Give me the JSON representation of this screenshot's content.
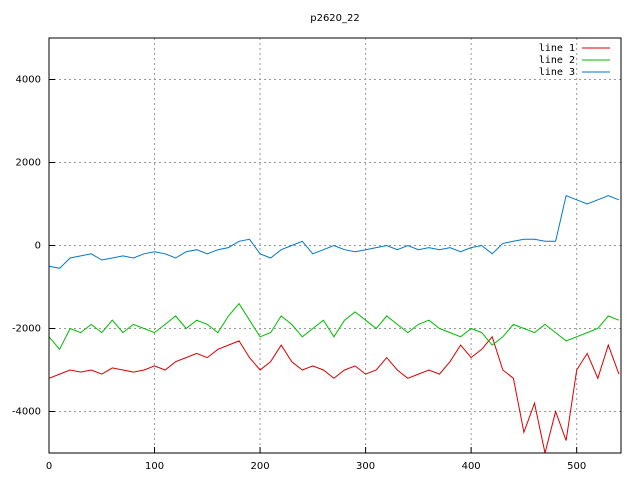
{
  "chart_data": {
    "type": "line",
    "title": "p2620_22",
    "x": [
      0,
      10,
      20,
      30,
      40,
      50,
      60,
      70,
      80,
      90,
      100,
      110,
      120,
      130,
      140,
      150,
      160,
      170,
      180,
      190,
      200,
      210,
      220,
      230,
      240,
      250,
      260,
      270,
      280,
      290,
      300,
      310,
      320,
      330,
      340,
      350,
      360,
      370,
      380,
      390,
      400,
      410,
      420,
      430,
      440,
      450,
      460,
      470,
      480,
      490,
      500,
      510,
      520,
      530,
      540
    ],
    "series": [
      {
        "name": "line 1",
        "color": "#dd0000",
        "values": [
          -3200,
          -3100,
          -3000,
          -3050,
          -3000,
          -3100,
          -2950,
          -3000,
          -3050,
          -3000,
          -2900,
          -3000,
          -2800,
          -2700,
          -2600,
          -2700,
          -2500,
          -2400,
          -2300,
          -2700,
          -3000,
          -2800,
          -2400,
          -2800,
          -3000,
          -2900,
          -3000,
          -3200,
          -3000,
          -2900,
          -3100,
          -3000,
          -2700,
          -3000,
          -3200,
          -3100,
          -3000,
          -3100,
          -2800,
          -2400,
          -2700,
          -2500,
          -2200,
          -3000,
          -3200,
          -4500,
          -3800,
          -5000,
          -4000,
          -4700,
          -3000,
          -2600,
          -3200,
          -2400,
          -3100
        ]
      },
      {
        "name": "line 2",
        "color": "#00bb00",
        "values": [
          -2200,
          -2500,
          -2000,
          -2100,
          -1900,
          -2100,
          -1800,
          -2100,
          -1900,
          -2000,
          -2100,
          -1900,
          -1700,
          -2000,
          -1800,
          -1900,
          -2100,
          -1700,
          -1400,
          -1800,
          -2200,
          -2100,
          -1700,
          -1900,
          -2200,
          -2000,
          -1800,
          -2200,
          -1800,
          -1600,
          -1800,
          -2000,
          -1700,
          -1900,
          -2100,
          -1900,
          -1800,
          -2000,
          -2100,
          -2200,
          -2000,
          -2100,
          -2400,
          -2200,
          -1900,
          -2000,
          -2100,
          -1900,
          -2100,
          -2300,
          -2200,
          -2100,
          -2000,
          -1700,
          -1800
        ]
      },
      {
        "name": "line 3",
        "color": "#0077cc",
        "values": [
          -500,
          -550,
          -300,
          -250,
          -200,
          -350,
          -300,
          -250,
          -300,
          -200,
          -150,
          -200,
          -300,
          -150,
          -100,
          -200,
          -100,
          -50,
          100,
          150,
          -200,
          -300,
          -100,
          0,
          100,
          -200,
          -100,
          0,
          -100,
          -150,
          -100,
          -50,
          0,
          -100,
          0,
          -100,
          -50,
          -100,
          -50,
          -150,
          -50,
          0,
          -200,
          50,
          100,
          150,
          150,
          100,
          100,
          1200,
          1100,
          1000,
          1100,
          1200,
          1100
        ]
      }
    ],
    "xlim": [
      0,
      542
    ],
    "xticks": [
      0,
      100,
      200,
      300,
      400,
      500
    ],
    "ylim": [
      -5000,
      5000
    ],
    "yticks": [
      -4000,
      -2000,
      0,
      2000,
      4000
    ],
    "grid": true,
    "legend": "top-right"
  }
}
